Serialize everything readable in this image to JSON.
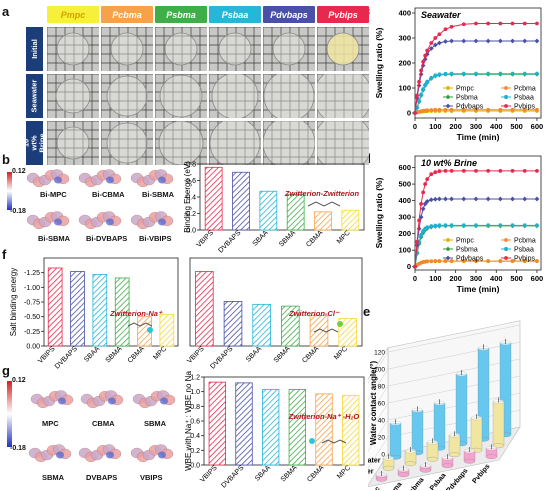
{
  "panel_labels": {
    "a": "a",
    "b": "b",
    "c": "c",
    "d": "d",
    "e": "e",
    "f": "f",
    "g": "g"
  },
  "panel_a": {
    "columns": [
      {
        "label": "Pmpc",
        "color": "#f6f03c",
        "text": "#d4a300"
      },
      {
        "label": "Pcbma",
        "color": "#f6a24a",
        "text": "#ffffff"
      },
      {
        "label": "Psbma",
        "color": "#3fae49",
        "text": "#ffffff"
      },
      {
        "label": "Psbaa",
        "color": "#27b6d8",
        "text": "#ffffff"
      },
      {
        "label": "Pdvbaps",
        "color": "#4a50a8",
        "text": "#ffffff"
      },
      {
        "label": "Pvbips",
        "color": "#e6294c",
        "text": "#ffffff"
      }
    ],
    "rows": [
      "Initial",
      "Seawater",
      "10 wt% Brine"
    ]
  },
  "panel_b_mols": {
    "scale_top": "0.12",
    "scale_bottom": "-0.18",
    "labels": [
      {
        "text": "Bi-MPC",
        "color": "#d7b14a"
      },
      {
        "text": "Bi-CBMA",
        "color": "#e98b2f"
      },
      {
        "text": "Bi-SBMA",
        "color": "#3a9a3f"
      },
      {
        "text": "Bi-SBMA",
        "color": "#2a8fc8"
      },
      {
        "text": "Bi-DVBAPS",
        "color": "#4a50a8"
      },
      {
        "text": "Bi-VBIPS",
        "color": "#d8263f"
      }
    ]
  },
  "panel_g_mols": {
    "scale_top": "0.12",
    "scale_bottom": "-0.18",
    "labels": [
      {
        "text": "MPC",
        "color": "#d7b14a"
      },
      {
        "text": "CBMA",
        "color": "#e98b2f"
      },
      {
        "text": "SBMA",
        "color": "#3a9a3f"
      },
      {
        "text": "SBMA",
        "color": "#2a8fc8"
      },
      {
        "text": "DVBAPS",
        "color": "#4a50a8"
      },
      {
        "text": "VBIPS",
        "color": "#d8263f"
      }
    ]
  },
  "chart_data": [
    {
      "id": "b",
      "type": "bar",
      "ylabel": "Binding Energy (eV)",
      "annotation": "Zwitterion-Zwitterion",
      "categories": [
        "VBIPS",
        "DVBAPS",
        "SBAA",
        "SBMA",
        "CBMA",
        "MPC"
      ],
      "values": [
        -0.76,
        -0.7,
        -0.47,
        -0.43,
        -0.22,
        -0.24
      ],
      "ylim": [
        -0.8,
        0.0
      ],
      "yticks": [
        0.0,
        -0.2,
        -0.4,
        -0.6,
        -0.8
      ],
      "colors": [
        "#e6294c",
        "#4a50a8",
        "#27b6d8",
        "#3fae49",
        "#f6a24a",
        "#f6d93c"
      ]
    },
    {
      "id": "c",
      "type": "line",
      "title": "Seawater",
      "xlabel": "Time (min)",
      "ylabel": "Swelling ratio (%)",
      "xlim": [
        0,
        620
      ],
      "ylim": [
        -20,
        420
      ],
      "xticks": [
        0,
        100,
        200,
        300,
        400,
        500,
        600
      ],
      "yticks": [
        0,
        100,
        200,
        300,
        400
      ],
      "x": [
        0,
        10,
        20,
        30,
        40,
        50,
        60,
        80,
        100,
        120,
        150,
        180,
        240,
        300,
        360,
        420,
        480,
        540,
        600
      ],
      "series": [
        {
          "name": "Pmpc",
          "color": "#d9b400",
          "marker": "circle",
          "values": [
            0,
            2,
            4,
            5,
            6,
            7,
            7,
            8,
            8,
            8,
            8,
            8,
            8,
            8,
            8,
            8,
            8,
            8,
            8
          ]
        },
        {
          "name": "Pcbma",
          "color": "#f08a2a",
          "marker": "circle",
          "values": [
            0,
            3,
            5,
            7,
            9,
            10,
            11,
            12,
            13,
            13,
            13,
            13,
            13,
            13,
            13,
            13,
            13,
            13,
            13
          ]
        },
        {
          "name": "Psbma",
          "color": "#2e9e3a",
          "marker": "diamond",
          "values": [
            0,
            20,
            45,
            70,
            92,
            110,
            122,
            138,
            148,
            152,
            155,
            155,
            155,
            155,
            155,
            155,
            155,
            155,
            155
          ]
        },
        {
          "name": "Psbaa",
          "color": "#1fb0cf",
          "marker": "hex",
          "values": [
            0,
            22,
            48,
            73,
            95,
            112,
            125,
            140,
            150,
            154,
            156,
            157,
            157,
            157,
            157,
            157,
            157,
            157,
            157
          ]
        },
        {
          "name": "Pdvbaps",
          "color": "#4a50a8",
          "marker": "diamond",
          "values": [
            0,
            60,
            110,
            155,
            190,
            215,
            235,
            258,
            272,
            280,
            286,
            288,
            288,
            288,
            288,
            288,
            288,
            288,
            288
          ]
        },
        {
          "name": "Pvbips",
          "color": "#e6294c",
          "marker": "circle",
          "values": [
            0,
            70,
            125,
            170,
            205,
            230,
            250,
            280,
            300,
            315,
            335,
            345,
            355,
            358,
            358,
            358,
            358,
            358,
            358
          ]
        }
      ]
    },
    {
      "id": "d",
      "type": "line",
      "title": "10 wt% Brine",
      "xlabel": "Time (min)",
      "ylabel": "Swelling ratio (%)",
      "xlim": [
        0,
        620
      ],
      "ylim": [
        -20,
        670
      ],
      "xticks": [
        0,
        100,
        200,
        300,
        400,
        500,
        600
      ],
      "yticks": [
        0,
        100,
        200,
        300,
        400,
        500,
        600
      ],
      "x": [
        0,
        10,
        20,
        30,
        40,
        50,
        60,
        80,
        100,
        120,
        150,
        180,
        240,
        300,
        360,
        420,
        480,
        540,
        600
      ],
      "series": [
        {
          "name": "Pmpc",
          "color": "#d9b400",
          "marker": "circle",
          "values": [
            0,
            10,
            18,
            24,
            28,
            30,
            32,
            33,
            34,
            34,
            34,
            34,
            34,
            34,
            34,
            34,
            34,
            34,
            34
          ]
        },
        {
          "name": "Pcbma",
          "color": "#f08a2a",
          "marker": "circle",
          "values": [
            0,
            10,
            18,
            24,
            28,
            30,
            32,
            33,
            34,
            34,
            34,
            34,
            34,
            34,
            34,
            34,
            34,
            34,
            34
          ]
        },
        {
          "name": "Psbma",
          "color": "#2e9e3a",
          "marker": "diamond",
          "values": [
            0,
            80,
            140,
            180,
            205,
            222,
            232,
            240,
            244,
            246,
            247,
            247,
            247,
            247,
            247,
            247,
            247,
            247,
            247
          ]
        },
        {
          "name": "Psbaa",
          "color": "#1fb0cf",
          "marker": "hex",
          "values": [
            0,
            85,
            150,
            192,
            215,
            230,
            238,
            245,
            248,
            250,
            250,
            250,
            250,
            250,
            250,
            250,
            250,
            250,
            250
          ]
        },
        {
          "name": "Pdvbaps",
          "color": "#4a50a8",
          "marker": "diamond",
          "values": [
            0,
            130,
            230,
            300,
            350,
            380,
            395,
            405,
            408,
            410,
            410,
            410,
            410,
            410,
            410,
            410,
            410,
            410,
            410
          ]
        },
        {
          "name": "Pvbips",
          "color": "#e6294c",
          "marker": "circle",
          "values": [
            0,
            150,
            280,
            380,
            450,
            500,
            530,
            560,
            572,
            578,
            580,
            580,
            580,
            580,
            580,
            580,
            580,
            580,
            580
          ]
        }
      ]
    },
    {
      "id": "e",
      "type": "bar3d",
      "zlabel": "Water contact angle(°)",
      "zticks": [
        0,
        20,
        40,
        60,
        80,
        100,
        120
      ],
      "categories": [
        "Pmpc",
        "Pcbma",
        "Psbma",
        "Psbaa",
        "Pdvbaps",
        "Pvbips"
      ],
      "rows": [
        {
          "name": "DI water",
          "color": "#66c8ee",
          "values": [
            40,
            50,
            53,
            82,
            107,
            108
          ]
        },
        {
          "name": "Seawater",
          "color": "#f0e6a0",
          "values": [
            12,
            15,
            20,
            23,
            38,
            52
          ]
        },
        {
          "name": "10 wt% Brine",
          "color": "#f5a3cf",
          "values": [
            5,
            6,
            5,
            9,
            12,
            10
          ]
        }
      ]
    },
    {
      "id": "f1",
      "type": "bar",
      "ylabel": "Salt binding energy",
      "annotation": "Zwitterion-Na⁺",
      "categories": [
        "VBIPS",
        "DVBAPS",
        "SBAA",
        "SBMA",
        "CBMA",
        "MPC"
      ],
      "values": [
        -1.33,
        -1.27,
        -1.22,
        -1.16,
        -0.5,
        -0.54
      ],
      "ylim": [
        -1.5,
        0.0
      ],
      "yticks": [
        0.0,
        -0.25,
        -0.5,
        -0.75,
        -1.0,
        -1.25
      ],
      "ytick_labels": [
        "0.00",
        "-0.25",
        "-0.50",
        "-0.75",
        "-1.00",
        "-1.25"
      ],
      "colors": [
        "#e6294c",
        "#4a50a8",
        "#27b6d8",
        "#3fae49",
        "#f6a24a",
        "#f6d93c"
      ]
    },
    {
      "id": "f2",
      "type": "bar",
      "annotation": "Zwitterion-Cl⁻",
      "categories": [
        "VBIPS",
        "DVBAPS",
        "SBAA",
        "SBMA",
        "CBMA",
        "MPC"
      ],
      "values": [
        -1.27,
        -0.76,
        -0.71,
        -0.68,
        -0.52,
        -0.47
      ],
      "ylim": [
        -1.5,
        0.0
      ],
      "colors": [
        "#e6294c",
        "#4a50a8",
        "#27b6d8",
        "#3fae49",
        "#f6a24a",
        "#f6d93c"
      ]
    },
    {
      "id": "g",
      "type": "bar",
      "ylabel": "WBE with Na⁺ : WBE no Na",
      "annotation": "Zwitterion-Na⁺ -H₂O",
      "categories": [
        "VBIPS",
        "DVBAPS",
        "SBAA",
        "SBMA",
        "CBMA",
        "MPC"
      ],
      "values": [
        1.13,
        1.12,
        1.03,
        1.03,
        0.97,
        0.95
      ],
      "ylim": [
        1.2,
        0.0
      ],
      "yticks": [
        0.0,
        0.2,
        0.4,
        0.6,
        0.8,
        1.0,
        1.2
      ],
      "ytick_labels": [
        "0.0",
        "0.2",
        "0.4",
        "0.6",
        "0.8",
        "1.0",
        "1.2"
      ],
      "colors": [
        "#e6294c",
        "#4a50a8",
        "#27b6d8",
        "#3fae49",
        "#f6a24a",
        "#f6d93c"
      ]
    }
  ]
}
